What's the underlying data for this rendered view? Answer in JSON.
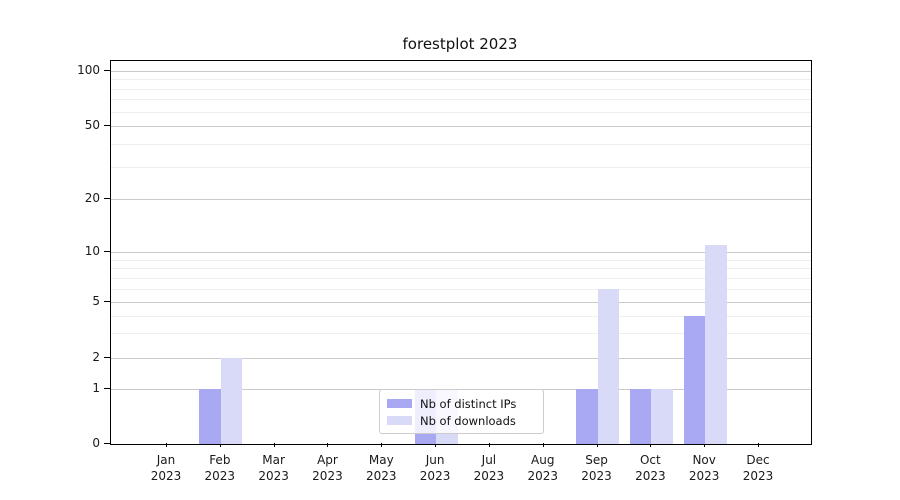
{
  "chart_data": {
    "type": "bar",
    "title": "forestplot 2023",
    "categories": [
      "Jan",
      "Feb",
      "Mar",
      "Apr",
      "May",
      "Jun",
      "Jul",
      "Aug",
      "Sep",
      "Oct",
      "Nov",
      "Dec"
    ],
    "category_year": "2023",
    "series": [
      {
        "name": "Nb of distinct IPs",
        "color": "#a9a9f3",
        "values": [
          0,
          1,
          0,
          0,
          0,
          1,
          0,
          0,
          1,
          1,
          4,
          0
        ]
      },
      {
        "name": "Nb of downloads",
        "color": "#d9d9f8",
        "values": [
          0,
          2,
          0,
          0,
          0,
          1,
          0,
          0,
          6,
          1,
          11,
          0
        ]
      }
    ],
    "xlabel": "",
    "ylabel": "",
    "yscale": "symlog",
    "ylim": [
      0,
      100
    ],
    "ytick_values": [
      0,
      1,
      2,
      5,
      10,
      20,
      50,
      100
    ],
    "ytick_labels": [
      "0",
      "1",
      "2",
      "5",
      "10",
      "20",
      "50",
      "100"
    ],
    "minor_ytick_values": [
      3,
      4,
      6,
      7,
      8,
      9,
      30,
      40,
      60,
      70,
      80,
      90
    ],
    "grid": "both",
    "legend_position": "lower center",
    "colors": {
      "major_grid": "#cacaca",
      "minor_grid": "#efefef",
      "axis_frame": "#000000",
      "text": "#1a1a1a",
      "legend_border": "#cccccc"
    }
  }
}
